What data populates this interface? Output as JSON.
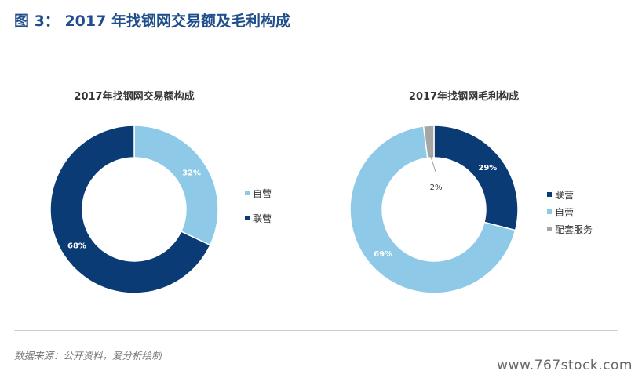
{
  "figure_title": "图 3： 2017 年找钢网交易额及毛利构成",
  "source_note": "数据来源：公开资料，爱分析绘制",
  "watermark": "www.767stock.com",
  "colors": {
    "title_blue": "#1f4e8c",
    "dark_navy": "#0b3b74",
    "light_blue": "#8ecae8",
    "gray": "#a6a6a6"
  },
  "chart_data": [
    {
      "type": "pie",
      "title": "2017年找钢网交易额构成",
      "series": [
        {
          "name": "自营",
          "value": 32,
          "label": "32%",
          "color": "#8ecae8"
        },
        {
          "name": "联营",
          "value": 68,
          "label": "68%",
          "color": "#0b3b74"
        }
      ],
      "legend": [
        "自营",
        "联营"
      ],
      "legend_position": "right"
    },
    {
      "type": "pie",
      "title": "2017年找钢网毛利构成",
      "series": [
        {
          "name": "联营",
          "value": 29,
          "label": "29%",
          "color": "#0b3b74"
        },
        {
          "name": "自营",
          "value": 69,
          "label": "69%",
          "color": "#8ecae8"
        },
        {
          "name": "配套服务",
          "value": 2,
          "label": "2%",
          "color": "#a6a6a6"
        }
      ],
      "legend": [
        "联营",
        "自营",
        "配套服务"
      ],
      "legend_position": "right"
    }
  ]
}
